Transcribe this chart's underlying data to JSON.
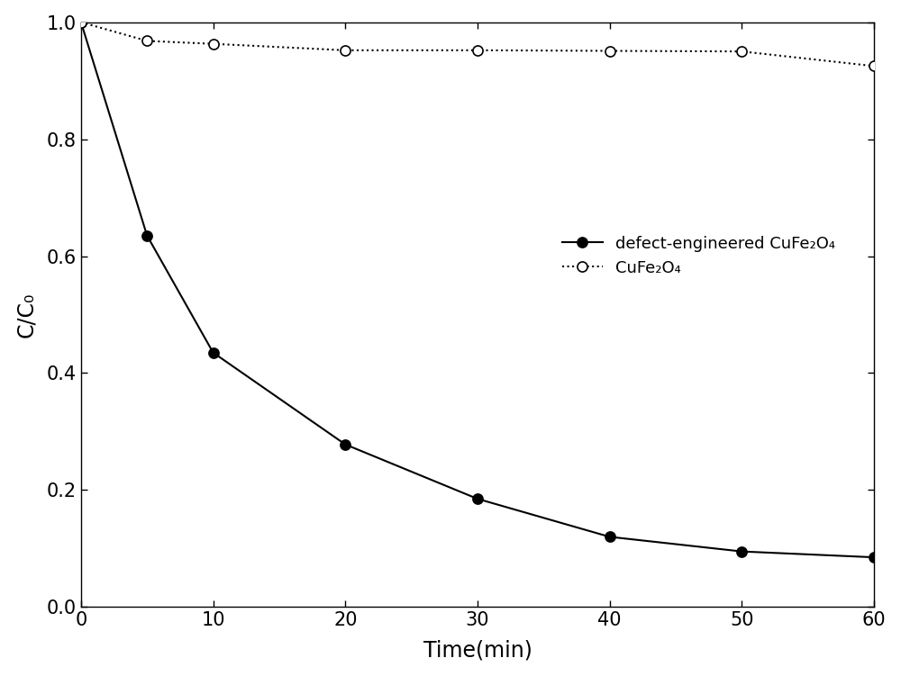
{
  "defect_x": [
    0,
    5,
    10,
    20,
    30,
    40,
    50,
    60
  ],
  "defect_y": [
    1.0,
    0.635,
    0.435,
    0.278,
    0.185,
    0.12,
    0.095,
    0.085
  ],
  "cufe_x": [
    0,
    5,
    10,
    20,
    30,
    40,
    50,
    60
  ],
  "cufe_y": [
    1.0,
    0.968,
    0.963,
    0.952,
    0.952,
    0.951,
    0.95,
    0.925
  ],
  "defect_label": "defect-engineered CuFe₂O₄",
  "cufe_label": "CuFe₂O₄",
  "xlabel": "Time(min)",
  "ylabel": "C/C₀",
  "xlim": [
    0,
    60
  ],
  "ylim": [
    0.0,
    1.0
  ],
  "xticks": [
    0,
    10,
    20,
    30,
    40,
    50,
    60
  ],
  "yticks": [
    0.0,
    0.2,
    0.4,
    0.6,
    0.8,
    1.0
  ],
  "line_color": "#000000",
  "marker_fill_solid": "#000000",
  "marker_fill_open": "#ffffff",
  "background_color": "#ffffff",
  "fig_width": 10.0,
  "fig_height": 7.51
}
